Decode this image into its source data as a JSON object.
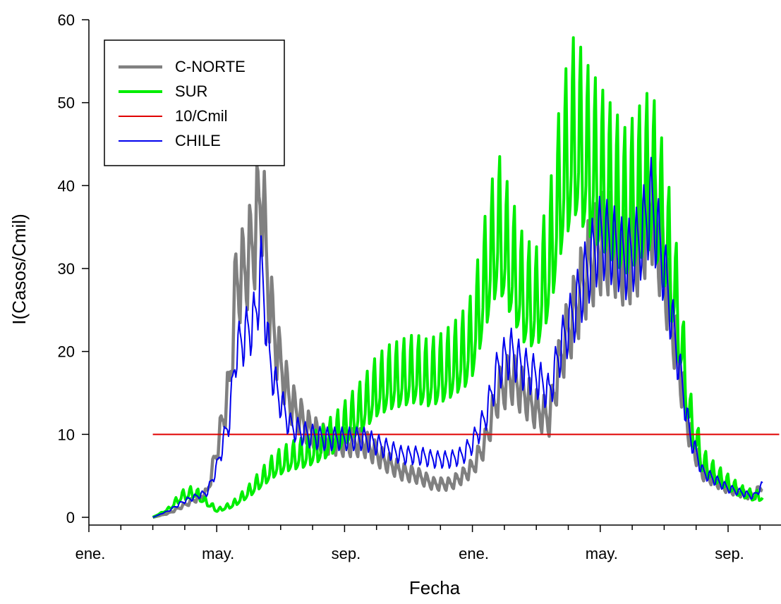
{
  "chart_data": {
    "type": "line",
    "title": "",
    "xlabel": "Fecha",
    "ylabel": "I(Casos/Cmil)",
    "ylim": [
      0,
      60
    ],
    "yticks": [
      0,
      10,
      20,
      30,
      40,
      50,
      60
    ],
    "xlim_months": [
      0,
      21.6
    ],
    "xticks": [
      {
        "month": 0,
        "label": "ene."
      },
      {
        "month": 4,
        "label": "may."
      },
      {
        "month": 8,
        "label": "sep."
      },
      {
        "month": 12,
        "label": "ene."
      },
      {
        "month": 16,
        "label": "may."
      },
      {
        "month": 20,
        "label": "sep."
      }
    ],
    "legend": {
      "position": "top-left",
      "boxed": true
    },
    "grid": false,
    "series": [
      {
        "name": "C-NORTE",
        "color": "#808080",
        "weight": 4.5,
        "osc": 0.2,
        "months": [
          2.0,
          2.5,
          3.0,
          3.7,
          4.0,
          4.4,
          4.6,
          4.9,
          5.2,
          5.4,
          5.65,
          5.9,
          6.3,
          6.8,
          7.3,
          8.0,
          8.6,
          9.2,
          9.8,
          10.3,
          10.8,
          11.3,
          11.7,
          12.0,
          12.4,
          12.8,
          13.2,
          13.6,
          14.0,
          14.4,
          14.8,
          15.2,
          15.6,
          16.0,
          16.4,
          16.8,
          17.2,
          17.6,
          18.0,
          18.4,
          18.8,
          19.2,
          19.6,
          20.0,
          20.4,
          20.8,
          21.1
        ],
        "values": [
          0.0,
          0.5,
          1.5,
          3.0,
          8.0,
          16.0,
          28.0,
          30.0,
          34.0,
          40.0,
          26.0,
          20.0,
          14.0,
          11.0,
          9.5,
          9.0,
          9.0,
          7.0,
          5.5,
          5.0,
          4.0,
          4.0,
          5.0,
          6.0,
          9.0,
          15.0,
          17.0,
          15.0,
          13.0,
          12.0,
          20.0,
          25.0,
          30.0,
          33.0,
          33.0,
          31.0,
          33.0,
          38.0,
          30.0,
          20.0,
          10.0,
          5.5,
          4.5,
          3.5,
          3.0,
          2.5,
          4.0
        ]
      },
      {
        "name": "SUR",
        "color": "#00ee00",
        "weight": 4,
        "osc": 0.28,
        "months": [
          2.0,
          2.5,
          2.9,
          3.3,
          3.6,
          3.9,
          4.0,
          4.5,
          5.0,
          5.4,
          5.8,
          6.3,
          6.8,
          7.3,
          7.8,
          8.2,
          8.6,
          9.0,
          9.4,
          9.8,
          10.2,
          10.6,
          11.0,
          11.4,
          11.8,
          12.0,
          12.4,
          12.8,
          13.2,
          13.6,
          14.0,
          14.4,
          14.8,
          15.2,
          15.6,
          16.0,
          16.4,
          16.8,
          17.2,
          17.6,
          18.0,
          18.4,
          18.8,
          19.2,
          19.6,
          20.0,
          20.4,
          20.8,
          21.1
        ],
        "values": [
          0.0,
          1.0,
          2.5,
          3.0,
          2.0,
          1.2,
          0.8,
          1.5,
          3.0,
          4.5,
          6.0,
          7.0,
          7.5,
          8.5,
          10.0,
          11.5,
          13.0,
          15.0,
          16.0,
          16.5,
          17.0,
          16.5,
          17.0,
          18.0,
          19.5,
          21.0,
          28.0,
          34.0,
          30.0,
          26.0,
          25.0,
          30.0,
          40.0,
          45.0,
          42.0,
          40.0,
          38.0,
          36.0,
          38.0,
          40.0,
          34.0,
          25.0,
          12.0,
          6.5,
          5.0,
          4.0,
          3.0,
          2.5,
          2.5
        ]
      },
      {
        "name": "10/Cmil",
        "color": "#e00000",
        "weight": 2,
        "osc": 0,
        "months": [
          2.0,
          21.6
        ],
        "values": [
          10,
          10
        ]
      },
      {
        "name": "CHILE",
        "color": "#0000ee",
        "weight": 2,
        "osc": 0.16,
        "months": [
          2.0,
          2.5,
          3.0,
          3.7,
          4.0,
          4.4,
          4.6,
          4.9,
          5.2,
          5.4,
          5.65,
          5.9,
          6.3,
          6.8,
          7.3,
          8.0,
          8.6,
          9.2,
          9.8,
          10.3,
          10.8,
          11.3,
          11.7,
          12.0,
          12.4,
          12.8,
          13.2,
          13.6,
          14.0,
          14.4,
          14.8,
          15.2,
          15.6,
          16.0,
          16.4,
          16.8,
          17.2,
          17.6,
          18.0,
          18.4,
          18.8,
          19.2,
          19.6,
          20.0,
          20.4,
          20.8,
          21.1
        ],
        "values": [
          0.0,
          0.8,
          2.0,
          3.0,
          6.0,
          12.0,
          20.0,
          22.0,
          24.0,
          30.0,
          19.0,
          15.0,
          11.0,
          10.0,
          9.5,
          9.5,
          9.5,
          8.5,
          7.5,
          7.5,
          7.0,
          7.0,
          7.5,
          9.0,
          12.0,
          18.0,
          20.0,
          18.0,
          17.0,
          15.0,
          21.0,
          25.0,
          30.0,
          34.0,
          33.0,
          31.0,
          33.0,
          38.0,
          30.0,
          20.0,
          10.0,
          5.5,
          4.5,
          3.5,
          3.0,
          2.5,
          4.0
        ]
      }
    ]
  }
}
